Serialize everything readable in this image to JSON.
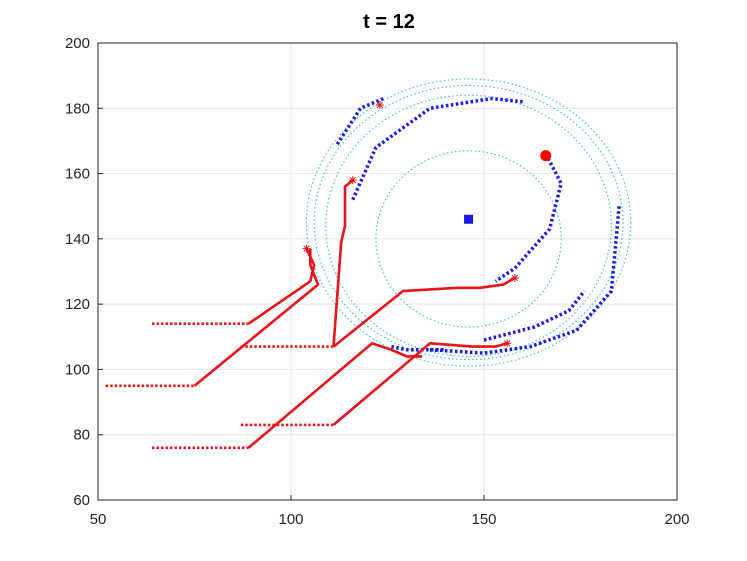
{
  "chart_data": {
    "type": "line",
    "title": "t = 12",
    "xlabel": "",
    "ylabel": "",
    "xlim": [
      50,
      200
    ],
    "ylim": [
      60,
      200
    ],
    "xticks": [
      50,
      100,
      150,
      200
    ],
    "yticks": [
      60,
      80,
      100,
      120,
      140,
      160,
      180,
      200
    ],
    "grid": true,
    "colors": {
      "trajectory": "#e8141b",
      "approach": "#e8141b",
      "orbit_guide": "#4db8e8",
      "orbit_path": "#1a1ae6",
      "center": "#1a1ae6",
      "target": "#ff0000"
    },
    "center_marker": {
      "x": 146,
      "y": 146
    },
    "target_marker": {
      "x": 166,
      "y": 165.5
    },
    "guide_circles": [
      {
        "cx": 146,
        "cy": 140,
        "rx": 24,
        "ry": 27
      },
      {
        "cx": 146,
        "cy": 144,
        "rx": 37,
        "ry": 40
      },
      {
        "cx": 146,
        "cy": 145,
        "rx": 40,
        "ry": 42
      },
      {
        "cx": 146,
        "cy": 145,
        "rx": 42,
        "ry": 44
      }
    ],
    "orbit_paths": [
      {
        "points": [
          [
            116,
            152
          ],
          [
            122,
            168
          ],
          [
            136,
            180
          ],
          [
            152,
            183
          ],
          [
            160,
            182
          ]
        ]
      },
      {
        "points": [
          [
            166,
            166
          ],
          [
            170,
            157
          ],
          [
            167,
            143
          ],
          [
            158,
            131
          ],
          [
            153,
            127
          ]
        ]
      },
      {
        "points": [
          [
            136,
            106
          ],
          [
            150,
            105
          ],
          [
            162,
            107
          ],
          [
            174,
            112
          ],
          [
            183,
            124
          ],
          [
            185,
            150
          ]
        ]
      },
      {
        "points": [
          [
            150,
            109
          ],
          [
            163,
            113
          ],
          [
            172,
            118
          ],
          [
            176,
            124
          ]
        ]
      },
      {
        "points": [
          [
            126,
            107
          ],
          [
            130,
            106
          ],
          [
            140,
            106
          ]
        ]
      },
      {
        "points": [
          [
            112,
            169
          ],
          [
            118,
            180
          ],
          [
            124,
            183
          ]
        ]
      }
    ],
    "approach_segments": [
      {
        "points": [
          [
            64,
            114
          ],
          [
            89,
            114
          ]
        ]
      },
      {
        "points": [
          [
            52,
            95
          ],
          [
            75,
            95
          ]
        ]
      },
      {
        "points": [
          [
            87,
            107
          ],
          [
            111,
            107
          ]
        ]
      },
      {
        "points": [
          [
            87,
            83
          ],
          [
            111,
            83
          ]
        ]
      },
      {
        "points": [
          [
            64,
            76
          ],
          [
            89,
            76
          ]
        ]
      }
    ],
    "trajectories": [
      {
        "points": [
          [
            89,
            114
          ],
          [
            105,
            127
          ],
          [
            106,
            132
          ],
          [
            104,
            137
          ]
        ]
      },
      {
        "points": [
          [
            75,
            95
          ],
          [
            107,
            126
          ],
          [
            105,
            132
          ],
          [
            105,
            137
          ]
        ]
      },
      {
        "points": [
          [
            111,
            107
          ],
          [
            113,
            139
          ],
          [
            114,
            144
          ],
          [
            114,
            156
          ],
          [
            116,
            158
          ]
        ]
      },
      {
        "points": [
          [
            111,
            107
          ],
          [
            129,
            124
          ],
          [
            143,
            125
          ],
          [
            149,
            125
          ],
          [
            155,
            126
          ],
          [
            158,
            128
          ]
        ]
      },
      {
        "points": [
          [
            111,
            83
          ],
          [
            136,
            108
          ],
          [
            147,
            107
          ],
          [
            153,
            107
          ],
          [
            156,
            108
          ]
        ]
      },
      {
        "points": [
          [
            89,
            76
          ],
          [
            121,
            108
          ],
          [
            126,
            106
          ],
          [
            130,
            104
          ],
          [
            134,
            104
          ]
        ]
      }
    ],
    "end_points": [
      {
        "x": 104,
        "y": 137
      },
      {
        "x": 116,
        "y": 158
      },
      {
        "x": 158,
        "y": 128
      },
      {
        "x": 156,
        "y": 108
      },
      {
        "x": 123,
        "y": 181
      }
    ]
  }
}
